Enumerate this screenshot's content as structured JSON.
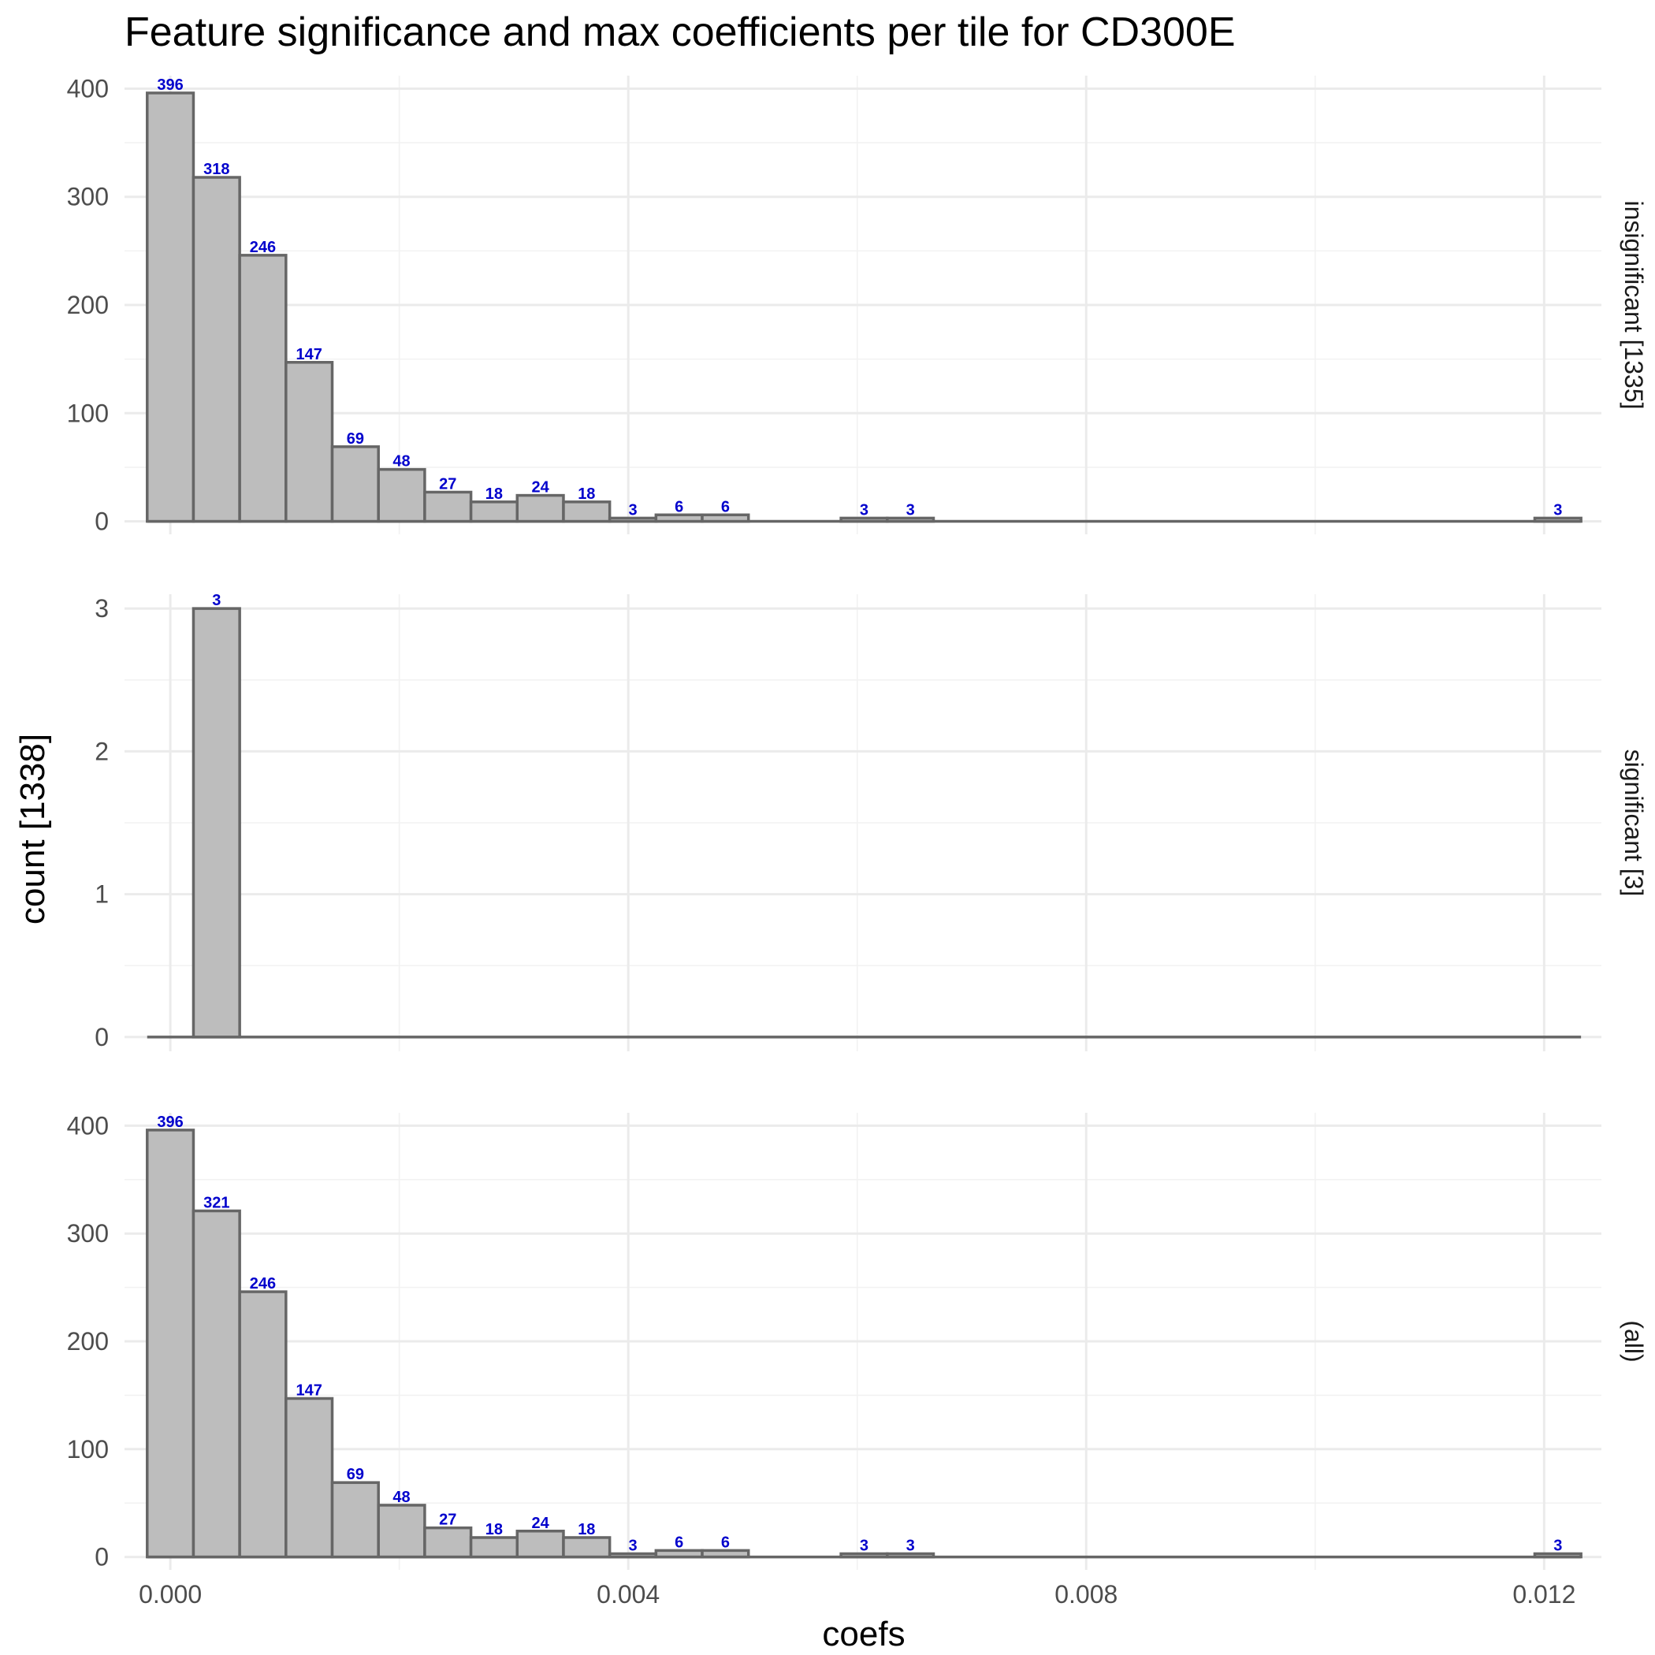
{
  "chart_data": {
    "type": "bar",
    "title": "Feature significance and max coefficients per tile for CD300E",
    "xlabel": "coefs",
    "ylabel": "count [1338]",
    "xlim": [
      -0.0004,
      0.0125
    ],
    "x_ticks": [
      0.0,
      0.004,
      0.008,
      0.012
    ],
    "x_tick_labels": [
      "0.000",
      "0.004",
      "0.008",
      "0.012"
    ],
    "bin_width": 0.000404,
    "bin_start": -0.000202,
    "n_bins": 31,
    "label_color": "#0000cc",
    "bar_fill": "#bdbdbd",
    "bar_stroke": "#666666",
    "panels": [
      {
        "strip": "insignificant [1335]",
        "ylim": [
          -12,
          412
        ],
        "y_ticks": [
          0,
          100,
          200,
          300,
          400
        ],
        "y_tick_labels": [
          "0",
          "100",
          "200",
          "300",
          "400"
        ],
        "counts": [
          396,
          318,
          246,
          147,
          69,
          48,
          27,
          18,
          24,
          18,
          3,
          6,
          6,
          0,
          0,
          3,
          3,
          0,
          0,
          0,
          0,
          0,
          0,
          0,
          0,
          0,
          0,
          0,
          0,
          0,
          3
        ]
      },
      {
        "strip": "significant [3]",
        "ylim": [
          -0.1,
          3.1
        ],
        "y_ticks": [
          0,
          1,
          2,
          3
        ],
        "y_tick_labels": [
          "0",
          "1",
          "2",
          "3"
        ],
        "counts": [
          0,
          3,
          0,
          0,
          0,
          0,
          0,
          0,
          0,
          0,
          0,
          0,
          0,
          0,
          0,
          0,
          0,
          0,
          0,
          0,
          0,
          0,
          0,
          0,
          0,
          0,
          0,
          0,
          0,
          0,
          0
        ]
      },
      {
        "strip": "(all)",
        "ylim": [
          -12,
          412
        ],
        "y_ticks": [
          0,
          100,
          200,
          300,
          400
        ],
        "y_tick_labels": [
          "0",
          "100",
          "200",
          "300",
          "400"
        ],
        "counts": [
          396,
          321,
          246,
          147,
          69,
          48,
          27,
          18,
          24,
          18,
          3,
          6,
          6,
          0,
          0,
          3,
          3,
          0,
          0,
          0,
          0,
          0,
          0,
          0,
          0,
          0,
          0,
          0,
          0,
          0,
          3
        ]
      }
    ]
  }
}
